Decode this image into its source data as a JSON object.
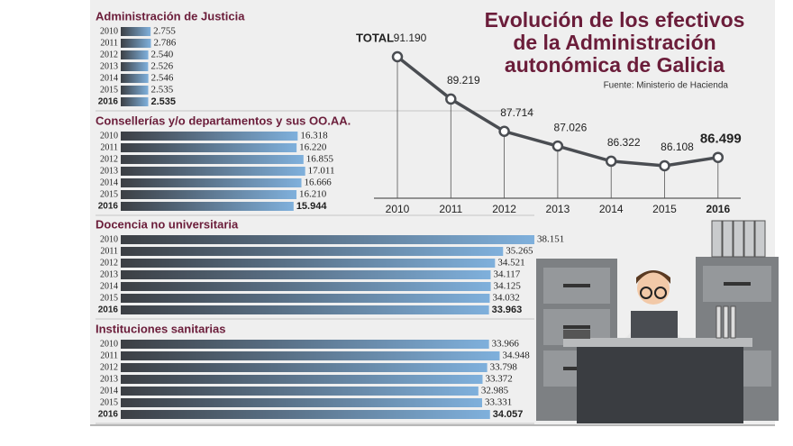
{
  "title": [
    "Evolución de los efectivos",
    "de la Administración",
    "autonómica de Galicia"
  ],
  "source": "Fuente: Ministerio de Hacienda",
  "chart_data": [
    {
      "type": "bar",
      "title": "Administración de Justicia",
      "categories": [
        "2010",
        "2011",
        "2012",
        "2013",
        "2014",
        "2015",
        "2016"
      ],
      "values": [
        2755,
        2786,
        2540,
        2526,
        2546,
        2535,
        2535
      ],
      "value_labels": [
        "2.755",
        "2.786",
        "2.540",
        "2.526",
        "2.546",
        "2.535",
        "2.535"
      ]
    },
    {
      "type": "bar",
      "title": "Consellerías y/o departamentos y sus OO.AA.",
      "categories": [
        "2010",
        "2011",
        "2012",
        "2013",
        "2014",
        "2015",
        "2016"
      ],
      "values": [
        16318,
        16220,
        16855,
        17011,
        16666,
        16210,
        15944
      ],
      "value_labels": [
        "16.318",
        "16.220",
        "16.855",
        "17.011",
        "16.666",
        "16.210",
        "15.944"
      ]
    },
    {
      "type": "bar",
      "title": "Docencia no universitaria",
      "categories": [
        "2010",
        "2011",
        "2012",
        "2013",
        "2014",
        "2015",
        "2016"
      ],
      "values": [
        38151,
        35265,
        34521,
        34117,
        34125,
        34032,
        33963
      ],
      "value_labels": [
        "38.151",
        "35.265",
        "34.521",
        "34.117",
        "34.125",
        "34.032",
        "33.963"
      ]
    },
    {
      "type": "bar",
      "title": "Instituciones sanitarias",
      "categories": [
        "2010",
        "2011",
        "2012",
        "2013",
        "2014",
        "2015",
        "2016"
      ],
      "values": [
        33966,
        34948,
        33798,
        33372,
        32985,
        33331,
        34057
      ],
      "value_labels": [
        "33.966",
        "34.948",
        "33.798",
        "33.372",
        "32.985",
        "33.331",
        "34.057"
      ]
    },
    {
      "type": "line",
      "title": "TOTAL",
      "categories": [
        "2010",
        "2011",
        "2012",
        "2013",
        "2014",
        "2015",
        "2016"
      ],
      "values": [
        91190,
        89219,
        87714,
        87026,
        86322,
        86108,
        86499
      ],
      "value_labels": [
        "91.190",
        "89.219",
        "87.714",
        "87.026",
        "86.322",
        "86.108",
        "86.499"
      ]
    }
  ]
}
